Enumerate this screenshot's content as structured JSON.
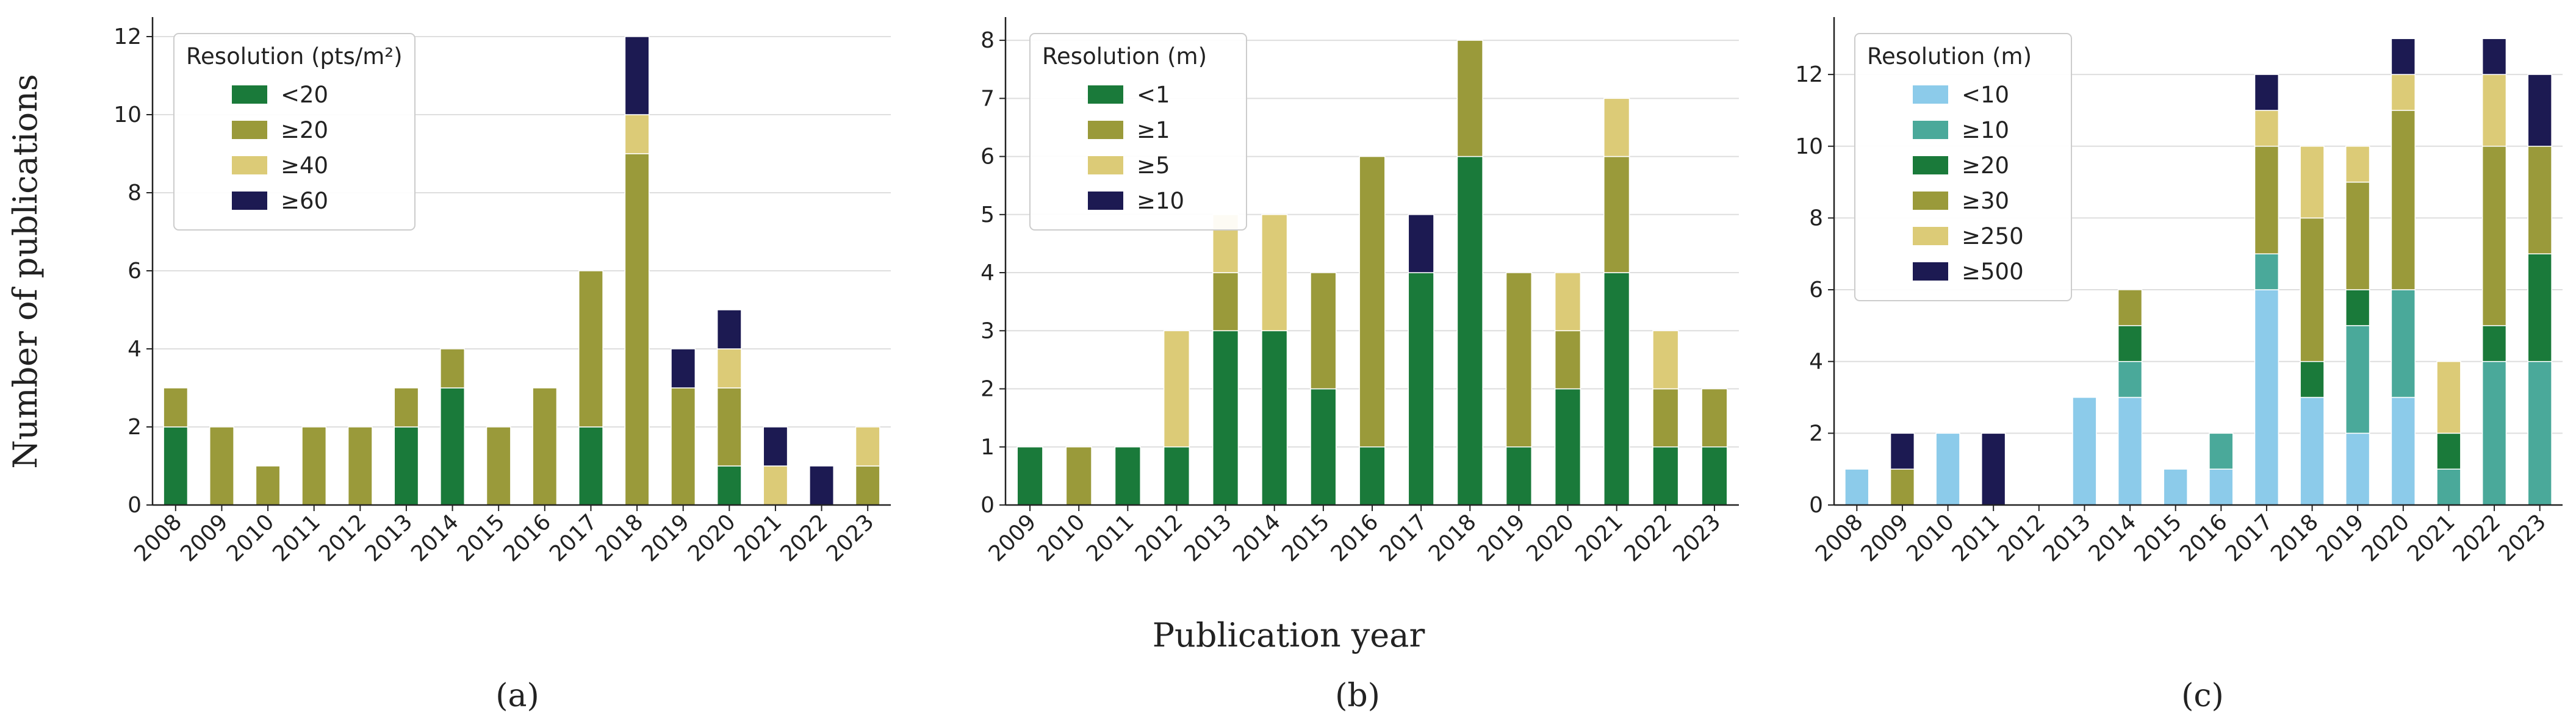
{
  "figure": {
    "ylabel": "Number of publications",
    "xlabel": "Publication year"
  },
  "colors": {
    "grid": "#dedede",
    "axis": "#222222",
    "dark_green": "#1a7a3a",
    "olive": "#9a9a3a",
    "light_khaki": "#dccb77",
    "navy": "#1c1a52",
    "sky_blue": "#8ccbea",
    "teal": "#4aa99a"
  },
  "chart_data": [
    {
      "type": "bar",
      "stacked": true,
      "panel_label": "(a)",
      "legend_title": "Resolution (pts/m²)",
      "legend_position": "top-left",
      "categories": [
        "2008",
        "2009",
        "2010",
        "2011",
        "2012",
        "2013",
        "2014",
        "2015",
        "2016",
        "2017",
        "2018",
        "2019",
        "2020",
        "2021",
        "2022",
        "2023"
      ],
      "ylim": [
        0,
        12.5
      ],
      "yticks": [
        0,
        2,
        4,
        6,
        8,
        10,
        12
      ],
      "series": [
        {
          "name": "<20",
          "color": "#1a7a3a",
          "values": [
            2,
            0,
            0,
            0,
            0,
            2,
            3,
            0,
            0,
            2,
            0,
            0,
            1,
            0,
            0,
            0
          ]
        },
        {
          "name": "≥20",
          "color": "#9a9a3a",
          "values": [
            1,
            2,
            1,
            2,
            2,
            1,
            1,
            2,
            3,
            4,
            9,
            3,
            2,
            0,
            0,
            1
          ]
        },
        {
          "name": "≥40",
          "color": "#dccb77",
          "values": [
            0,
            0,
            0,
            0,
            0,
            0,
            0,
            0,
            0,
            0,
            1,
            0,
            1,
            1,
            0,
            1
          ]
        },
        {
          "name": "≥60",
          "color": "#1c1a52",
          "values": [
            0,
            0,
            0,
            0,
            0,
            0,
            0,
            0,
            0,
            0,
            2,
            1,
            1,
            1,
            1,
            0
          ]
        }
      ]
    },
    {
      "type": "bar",
      "stacked": true,
      "panel_label": "(b)",
      "legend_title": "Resolution (m)",
      "legend_position": "top-left",
      "categories": [
        "2009",
        "2010",
        "2011",
        "2012",
        "2013",
        "2014",
        "2015",
        "2016",
        "2017",
        "2018",
        "2019",
        "2020",
        "2021",
        "2022",
        "2023"
      ],
      "ylim": [
        0,
        8.4
      ],
      "yticks": [
        0,
        1,
        2,
        3,
        4,
        5,
        6,
        7,
        8
      ],
      "series": [
        {
          "name": "<1",
          "color": "#1a7a3a",
          "values": [
            1,
            0,
            1,
            1,
            3,
            3,
            2,
            1,
            4,
            6,
            1,
            2,
            4,
            1,
            1
          ]
        },
        {
          "name": "≥1",
          "color": "#9a9a3a",
          "values": [
            0,
            1,
            0,
            0,
            1,
            0,
            2,
            5,
            0,
            2,
            3,
            1,
            2,
            1,
            1
          ]
        },
        {
          "name": "≥5",
          "color": "#dccb77",
          "values": [
            0,
            0,
            0,
            2,
            1,
            2,
            0,
            0,
            0,
            0,
            0,
            1,
            1,
            1,
            0
          ]
        },
        {
          "name": "≥10",
          "color": "#1c1a52",
          "values": [
            0,
            0,
            0,
            0,
            0,
            0,
            0,
            0,
            1,
            0,
            0,
            0,
            0,
            0,
            0
          ]
        }
      ]
    },
    {
      "type": "bar",
      "stacked": true,
      "panel_label": "(c)",
      "legend_title": "Resolution (m)",
      "legend_position": "top-left",
      "categories": [
        "2008",
        "2009",
        "2010",
        "2011",
        "2012",
        "2013",
        "2014",
        "2015",
        "2016",
        "2017",
        "2018",
        "2019",
        "2020",
        "2021",
        "2022",
        "2023"
      ],
      "ylim": [
        0,
        13.6
      ],
      "yticks": [
        0,
        2,
        4,
        6,
        8,
        10,
        12
      ],
      "series": [
        {
          "name": "<10",
          "color": "#8ccbea",
          "values": [
            1,
            0,
            2,
            0,
            0,
            3,
            3,
            1,
            1,
            6,
            3,
            2,
            3,
            0,
            0,
            0
          ]
        },
        {
          "name": "≥10",
          "color": "#4aa99a",
          "values": [
            0,
            0,
            0,
            0,
            0,
            0,
            1,
            0,
            1,
            1,
            0,
            3,
            3,
            1,
            4,
            4
          ]
        },
        {
          "name": "≥20",
          "color": "#1a7a3a",
          "values": [
            0,
            0,
            0,
            0,
            0,
            0,
            1,
            0,
            0,
            0,
            1,
            1,
            0,
            1,
            1,
            3
          ]
        },
        {
          "name": "≥30",
          "color": "#9a9a3a",
          "values": [
            0,
            1,
            0,
            0,
            0,
            0,
            1,
            0,
            0,
            3,
            4,
            3,
            5,
            0,
            5,
            3
          ]
        },
        {
          "name": "≥250",
          "color": "#dccb77",
          "values": [
            0,
            0,
            0,
            0,
            0,
            0,
            0,
            0,
            0,
            1,
            2,
            1,
            1,
            2,
            2,
            0
          ]
        },
        {
          "name": "≥500",
          "color": "#1c1a52",
          "values": [
            0,
            1,
            0,
            2,
            0,
            0,
            0,
            0,
            0,
            1,
            0,
            0,
            1,
            0,
            1,
            2
          ]
        }
      ]
    }
  ]
}
